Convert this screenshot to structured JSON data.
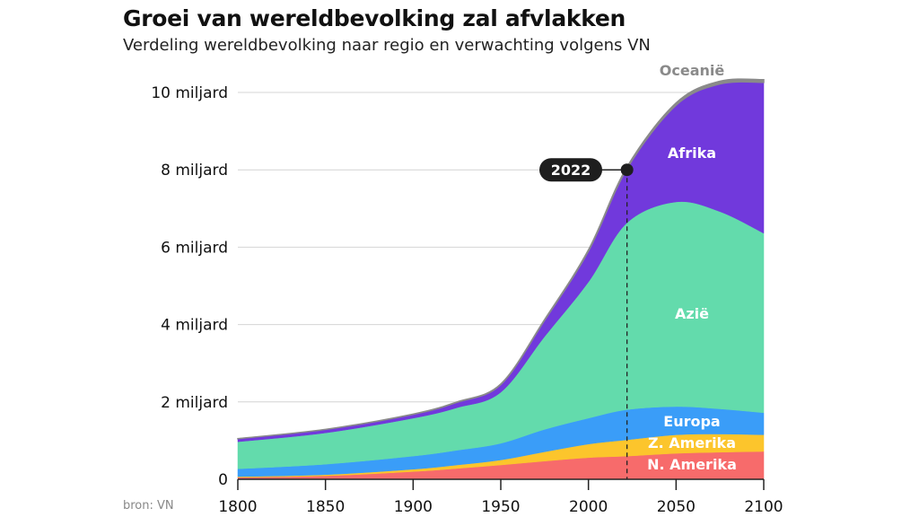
{
  "title": "Groei van wereldbevolking zal afvlakken",
  "subtitle": "Verdeling wereldbevolking naar regio en verwachting volgens VN",
  "source": "bron: VN",
  "chart_data": {
    "type": "area",
    "stacked": true,
    "x": [
      1800,
      1850,
      1900,
      1925,
      1950,
      1975,
      2000,
      2022,
      2050,
      2075,
      2100
    ],
    "xlim": [
      1800,
      2100
    ],
    "ylim": [
      0,
      10.6
    ],
    "x_ticks": [
      "1800",
      "1850",
      "1900",
      "1950",
      "2000",
      "2050",
      "2100"
    ],
    "y_ticks": [
      {
        "value": 0,
        "label": "0"
      },
      {
        "value": 2,
        "label": "2 miljard"
      },
      {
        "value": 4,
        "label": "4 miljard"
      },
      {
        "value": 6,
        "label": "6 miljard"
      },
      {
        "value": 8,
        "label": "8 miljard"
      },
      {
        "value": 10,
        "label": "10 miljard"
      }
    ],
    "grid": "horizontal",
    "unit": "miljard",
    "series": [
      {
        "name": "N. Amerika",
        "color": "#f76b6b",
        "values": [
          0.05,
          0.09,
          0.2,
          0.28,
          0.37,
          0.47,
          0.56,
          0.6,
          0.67,
          0.7,
          0.72
        ]
      },
      {
        "name": "Z. Amerika",
        "color": "#fcc52c",
        "values": [
          0.02,
          0.03,
          0.06,
          0.09,
          0.13,
          0.24,
          0.35,
          0.42,
          0.48,
          0.47,
          0.43
        ]
      },
      {
        "name": "Europa",
        "color": "#3a9df8",
        "values": [
          0.2,
          0.27,
          0.34,
          0.38,
          0.43,
          0.58,
          0.67,
          0.78,
          0.73,
          0.65,
          0.57
        ]
      },
      {
        "name": "Azië",
        "color": "#63dbac",
        "values": [
          0.7,
          0.81,
          0.98,
          1.1,
          1.32,
          2.4,
          3.52,
          4.83,
          5.29,
          5.1,
          4.64
        ]
      },
      {
        "name": "Afrika",
        "color": "#7139dc",
        "values": [
          0.08,
          0.09,
          0.1,
          0.14,
          0.2,
          0.42,
          0.8,
          1.4,
          2.5,
          3.3,
          3.9
        ]
      },
      {
        "name": "Oceanië",
        "color": "#8a8a8a",
        "values": [
          0.002,
          0.002,
          0.006,
          0.01,
          0.013,
          0.02,
          0.03,
          0.045,
          0.06,
          0.07,
          0.07
        ]
      }
    ],
    "annotation": {
      "year": 2022,
      "label": "2022",
      "value": 8.0
    }
  }
}
